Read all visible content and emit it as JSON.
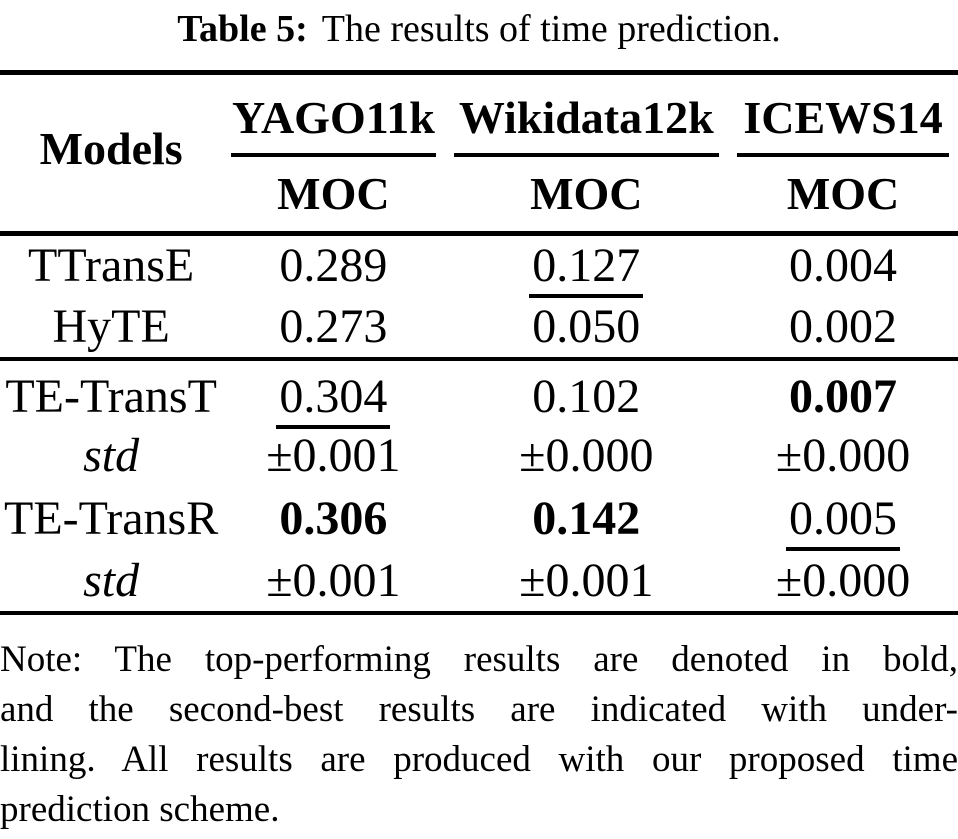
{
  "caption": {
    "label": "Table 5:",
    "text": "The results of time prediction."
  },
  "table": {
    "models_header": "Models",
    "datasets": [
      {
        "name": "YAGO11k",
        "metric": "MOC"
      },
      {
        "name": "Wikidata12k",
        "metric": "MOC"
      },
      {
        "name": "ICEWS14",
        "metric": "MOC"
      }
    ],
    "baseline_rows": [
      {
        "model": "TTransE",
        "model_style": "plain",
        "values": [
          {
            "text": "0.289",
            "style": "plain"
          },
          {
            "text": "0.127",
            "style": "underline"
          },
          {
            "text": "0.004",
            "style": "plain"
          }
        ]
      },
      {
        "model": "HyTE",
        "model_style": "plain",
        "values": [
          {
            "text": "0.273",
            "style": "plain"
          },
          {
            "text": "0.050",
            "style": "plain"
          },
          {
            "text": "0.002",
            "style": "plain"
          }
        ]
      }
    ],
    "proposed_rows": [
      {
        "model": "TE-TransT",
        "model_style": "plain",
        "values": [
          {
            "text": "0.304",
            "style": "underline"
          },
          {
            "text": "0.102",
            "style": "plain"
          },
          {
            "text": "0.007",
            "style": "bold"
          }
        ]
      },
      {
        "model": "std",
        "model_style": "italic",
        "values": [
          {
            "text": "±0.001",
            "style": "plain"
          },
          {
            "text": "±0.000",
            "style": "plain"
          },
          {
            "text": "±0.000",
            "style": "plain"
          }
        ]
      },
      {
        "model": "TE-TransR",
        "model_style": "plain",
        "values": [
          {
            "text": "0.306",
            "style": "bold"
          },
          {
            "text": "0.142",
            "style": "bold"
          },
          {
            "text": "0.005",
            "style": "underline"
          }
        ]
      },
      {
        "model": "std",
        "model_style": "italic",
        "values": [
          {
            "text": "±0.001",
            "style": "plain"
          },
          {
            "text": "±0.001",
            "style": "plain"
          },
          {
            "text": "±0.000",
            "style": "plain"
          }
        ]
      }
    ]
  },
  "note": {
    "lines": [
      "Note: The top-performing results are denoted in bold,",
      "and the second-best results are indicated with under-",
      "lining. All results are produced with our proposed time",
      "prediction scheme."
    ]
  }
}
